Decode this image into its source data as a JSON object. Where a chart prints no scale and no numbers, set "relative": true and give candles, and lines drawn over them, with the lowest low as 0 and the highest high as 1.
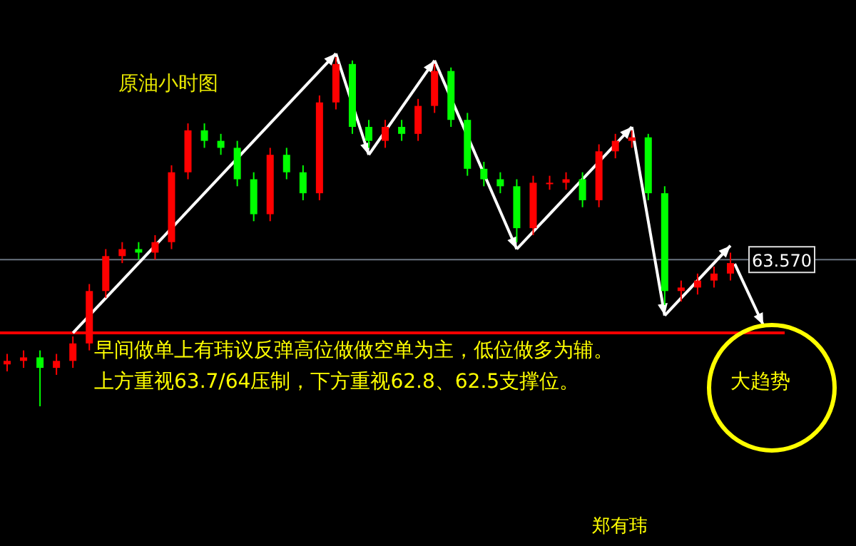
{
  "chart_data": {
    "type": "candlestick",
    "relative": true,
    "title": "原油小时图",
    "categories": [
      null,
      null,
      null,
      null,
      null,
      null,
      null,
      null,
      null,
      null,
      null,
      null,
      null,
      null,
      null,
      null,
      null,
      null,
      null,
      null,
      null,
      null,
      null,
      null,
      null,
      null,
      null,
      null,
      null,
      null,
      null,
      null,
      null,
      null,
      null,
      null,
      null,
      null,
      null,
      null,
      null,
      null,
      null,
      null,
      null
    ],
    "ohlc": [
      [
        0.12,
        0.15,
        0.1,
        0.13
      ],
      [
        0.13,
        0.16,
        0.11,
        0.14
      ],
      [
        0.14,
        0.16,
        0.0,
        0.11
      ],
      [
        0.11,
        0.15,
        0.09,
        0.13
      ],
      [
        0.13,
        0.2,
        0.11,
        0.18
      ],
      [
        0.18,
        0.35,
        0.16,
        0.33
      ],
      [
        0.33,
        0.45,
        0.31,
        0.43
      ],
      [
        0.43,
        0.47,
        0.41,
        0.45
      ],
      [
        0.45,
        0.47,
        0.42,
        0.44
      ],
      [
        0.44,
        0.49,
        0.42,
        0.47
      ],
      [
        0.47,
        0.69,
        0.45,
        0.67
      ],
      [
        0.67,
        0.81,
        0.65,
        0.79
      ],
      [
        0.79,
        0.81,
        0.74,
        0.76
      ],
      [
        0.76,
        0.78,
        0.72,
        0.74
      ],
      [
        0.74,
        0.76,
        0.63,
        0.65
      ],
      [
        0.65,
        0.67,
        0.53,
        0.55
      ],
      [
        0.55,
        0.74,
        0.53,
        0.72
      ],
      [
        0.72,
        0.74,
        0.65,
        0.67
      ],
      [
        0.67,
        0.69,
        0.59,
        0.61
      ],
      [
        0.61,
        0.89,
        0.59,
        0.87
      ],
      [
        0.87,
        1.0,
        0.85,
        0.98
      ],
      [
        0.98,
        0.99,
        0.78,
        0.8
      ],
      [
        0.8,
        0.82,
        0.74,
        0.76
      ],
      [
        0.76,
        0.82,
        0.74,
        0.8
      ],
      [
        0.8,
        0.82,
        0.76,
        0.78
      ],
      [
        0.78,
        0.88,
        0.76,
        0.86
      ],
      [
        0.86,
        0.98,
        0.84,
        0.96
      ],
      [
        0.96,
        0.97,
        0.8,
        0.82
      ],
      [
        0.82,
        0.84,
        0.66,
        0.68
      ],
      [
        0.68,
        0.7,
        0.63,
        0.65
      ],
      [
        0.65,
        0.67,
        0.61,
        0.63
      ],
      [
        0.63,
        0.65,
        0.47,
        0.51
      ],
      [
        0.51,
        0.66,
        0.49,
        0.64
      ],
      [
        0.64,
        0.66,
        0.62,
        0.64
      ],
      [
        0.64,
        0.67,
        0.62,
        0.65
      ],
      [
        0.65,
        0.67,
        0.57,
        0.59
      ],
      [
        0.59,
        0.75,
        0.57,
        0.73
      ],
      [
        0.73,
        0.78,
        0.71,
        0.76
      ],
      [
        0.76,
        0.79,
        0.74,
        0.77
      ],
      [
        0.77,
        0.78,
        0.59,
        0.61
      ],
      [
        0.61,
        0.63,
        0.29,
        0.33
      ],
      [
        0.33,
        0.36,
        0.3,
        0.34
      ],
      [
        0.34,
        0.38,
        0.32,
        0.36
      ],
      [
        0.36,
        0.4,
        0.34,
        0.38
      ],
      [
        0.38,
        0.44,
        0.36,
        0.41
      ]
    ],
    "colors": [
      "#ff0000",
      "#ff0000",
      "#00ff00",
      "#ff0000",
      "#ff0000",
      "#ff0000",
      "#ff0000",
      "#ff0000",
      "#00ff00",
      "#ff0000",
      "#ff0000",
      "#ff0000",
      "#00ff00",
      "#00ff00",
      "#00ff00",
      "#00ff00",
      "#ff0000",
      "#00ff00",
      "#00ff00",
      "#ff0000",
      "#ff0000",
      "#00ff00",
      "#00ff00",
      "#ff0000",
      "#00ff00",
      "#ff0000",
      "#ff0000",
      "#00ff00",
      "#00ff00",
      "#00ff00",
      "#00ff00",
      "#00ff00",
      "#ff0000",
      "#ff0000",
      "#ff0000",
      "#00ff00",
      "#ff0000",
      "#ff0000",
      "#ff0000",
      "#00ff00",
      "#00ff00",
      "#ff0000",
      "#ff0000",
      "#ff0000",
      "#ff0000"
    ],
    "ref_lines": [
      {
        "axis": "y",
        "value": 0.42,
        "color": "#6a7380"
      },
      {
        "axis": "y",
        "value": 0.21,
        "color": "#ff0000"
      }
    ],
    "annotations": [
      "63.570",
      "早间做单上有玮议反弹高位做做空单为主，低位做多为辅。",
      "上方重视63.7/64压制，下方重视62.8、62.5支撑位。",
      "大趋势",
      "郑有玮"
    ]
  }
}
